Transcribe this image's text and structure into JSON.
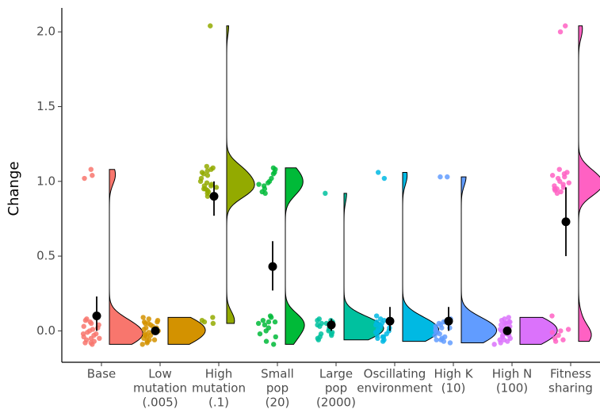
{
  "chart_data": {
    "type": "raincloud",
    "y_label": "Change",
    "categories": [
      [
        "Base"
      ],
      [
        "Low",
        "mutation",
        "(.005)"
      ],
      [
        "High",
        "mutation",
        "(.1)"
      ],
      [
        "Small",
        "pop",
        "(20)"
      ],
      [
        "Large",
        "pop",
        "(2000)"
      ],
      [
        "Oscillating",
        "environment"
      ],
      [
        "High K",
        "(10)"
      ],
      [
        "High N",
        "(100)"
      ],
      [
        "Fitness",
        "sharing"
      ]
    ],
    "ylim": [
      -0.21,
      2.16
    ],
    "yticks": [
      {
        "value": 0,
        "label": "0.0"
      },
      {
        "value": 0.5,
        "label": "0.5"
      },
      {
        "value": 1,
        "label": "1.0"
      },
      {
        "value": 1.5,
        "label": "1.5"
      },
      {
        "value": 2,
        "label": "2.0"
      }
    ],
    "groups": [
      {
        "color": "#F8766D",
        "mean": 0.1,
        "ci": [
          0.0,
          0.23
        ],
        "points": [
          1.08,
          1.04,
          1.02,
          0.08,
          0.06,
          0.05,
          0.03,
          0.02,
          0.01,
          0.0,
          -0.01,
          -0.02,
          -0.03,
          -0.04,
          -0.05,
          -0.06,
          -0.07,
          -0.08,
          -0.09,
          -0.08,
          0.07,
          -0.02,
          0.04,
          -0.05
        ]
      },
      {
        "color": "#D39200",
        "mean": 0.0,
        "ci": [
          -0.01,
          0.01
        ],
        "points": [
          0.09,
          0.08,
          0.07,
          0.06,
          0.05,
          0.04,
          0.03,
          0.02,
          0.01,
          0.0,
          -0.01,
          -0.02,
          -0.03,
          -0.04,
          -0.05,
          -0.06,
          -0.07,
          -0.08,
          -0.09,
          0.06,
          -0.03,
          0.02,
          -0.06,
          0.05
        ]
      },
      {
        "color": "#93AA00",
        "mean": 0.9,
        "ci": [
          0.77,
          1.0
        ],
        "points": [
          2.04,
          1.1,
          1.09,
          1.08,
          1.06,
          1.05,
          1.04,
          1.02,
          1.0,
          0.99,
          0.98,
          0.97,
          0.96,
          0.95,
          0.94,
          0.93,
          0.92,
          0.91,
          0.9,
          1.07,
          0.97,
          0.95,
          0.09,
          0.07,
          0.06,
          0.05
        ]
      },
      {
        "color": "#00BA38",
        "mean": 0.43,
        "ci": [
          0.27,
          0.6
        ],
        "points": [
          1.09,
          1.08,
          1.06,
          1.05,
          1.02,
          1.0,
          0.99,
          0.98,
          0.97,
          0.95,
          0.93,
          0.92,
          0.1,
          0.09,
          0.07,
          0.06,
          0.05,
          0.04,
          0.02,
          0.0,
          -0.02,
          -0.04,
          -0.07,
          -0.09,
          0.06
        ]
      },
      {
        "color": "#00C19F",
        "mean": 0.04,
        "ci": [
          0.0,
          0.08
        ],
        "points": [
          0.92,
          0.08,
          0.07,
          0.06,
          0.05,
          0.04,
          0.03,
          0.02,
          0.01,
          0.0,
          -0.01,
          -0.02,
          -0.03,
          -0.04,
          -0.05,
          -0.06,
          0.07,
          0.05,
          -0.02,
          0.03
        ]
      },
      {
        "color": "#00B9E3",
        "mean": 0.065,
        "ci": [
          0.0,
          0.16
        ],
        "points": [
          1.06,
          1.02,
          0.1,
          0.08,
          0.07,
          0.06,
          0.05,
          0.04,
          0.03,
          0.02,
          0.01,
          0.0,
          -0.01,
          -0.02,
          -0.03,
          -0.04,
          -0.05,
          -0.06,
          -0.07,
          0.04,
          0.0,
          -0.04
        ]
      },
      {
        "color": "#619CFF",
        "mean": 0.065,
        "ci": [
          0.0,
          0.16
        ],
        "points": [
          1.03,
          1.03,
          0.08,
          0.07,
          0.06,
          0.05,
          0.04,
          0.03,
          0.02,
          0.01,
          0.0,
          -0.01,
          -0.02,
          -0.03,
          -0.04,
          -0.05,
          -0.06,
          -0.07,
          -0.08,
          0.06,
          0.02,
          -0.06
        ]
      },
      {
        "color": "#DB72FB",
        "mean": 0.0,
        "ci": [
          -0.005,
          0.005
        ],
        "points": [
          0.09,
          0.08,
          0.07,
          0.06,
          0.05,
          0.04,
          0.03,
          0.02,
          0.01,
          0.0,
          -0.01,
          -0.02,
          -0.03,
          -0.04,
          -0.05,
          -0.06,
          -0.07,
          -0.08,
          -0.09,
          0.06,
          -0.03,
          0.02,
          -0.06,
          0.05
        ]
      },
      {
        "color": "#FF61C3",
        "mean": 0.73,
        "ci": [
          0.5,
          0.96
        ],
        "points": [
          2.04,
          2.0,
          1.08,
          1.06,
          1.05,
          1.04,
          1.02,
          1.0,
          0.99,
          0.98,
          0.97,
          0.96,
          0.95,
          0.94,
          0.93,
          0.92,
          0.1,
          0.01,
          0.0,
          -0.01,
          -0.03,
          -0.05,
          -0.06,
          -0.07,
          1.03,
          0.95
        ]
      }
    ]
  }
}
